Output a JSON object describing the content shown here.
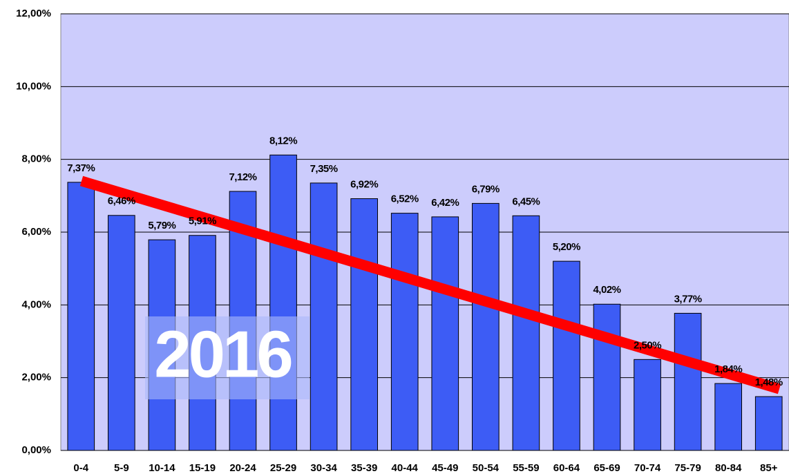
{
  "chart_data": {
    "type": "bar",
    "annotation": "2016",
    "categories": [
      "0-4",
      "5-9",
      "10-14",
      "15-19",
      "20-24",
      "25-29",
      "30-34",
      "35-39",
      "40-44",
      "45-49",
      "50-54",
      "55-59",
      "60-64",
      "65-69",
      "70-74",
      "75-79",
      "80-84",
      "85+"
    ],
    "values": [
      7.37,
      6.46,
      5.79,
      5.91,
      7.12,
      8.12,
      7.35,
      6.92,
      6.52,
      6.42,
      6.79,
      6.45,
      5.2,
      4.02,
      2.5,
      3.77,
      1.84,
      1.48
    ],
    "value_labels": [
      "7,37%",
      "6,46%",
      "5,79%",
      "5,91%",
      "7,12%",
      "8,12%",
      "7,35%",
      "6,92%",
      "6,52%",
      "6,42%",
      "6,79%",
      "6,45%",
      "5,20%",
      "4,02%",
      "2,50%",
      "3,77%",
      "1,84%",
      "1,48%"
    ],
    "color": "#3d5cf5",
    "ylim": [
      0,
      12
    ],
    "yticks": [
      {
        "value": 0,
        "label": "0,00%"
      },
      {
        "value": 2,
        "label": "2,00%"
      },
      {
        "value": 4,
        "label": "4,00%"
      },
      {
        "value": 6,
        "label": "6,00%"
      },
      {
        "value": 8,
        "label": "8,00%"
      },
      {
        "value": 10,
        "label": "10,00%"
      },
      {
        "value": 12,
        "label": "12,00%"
      }
    ],
    "grid": true
  }
}
